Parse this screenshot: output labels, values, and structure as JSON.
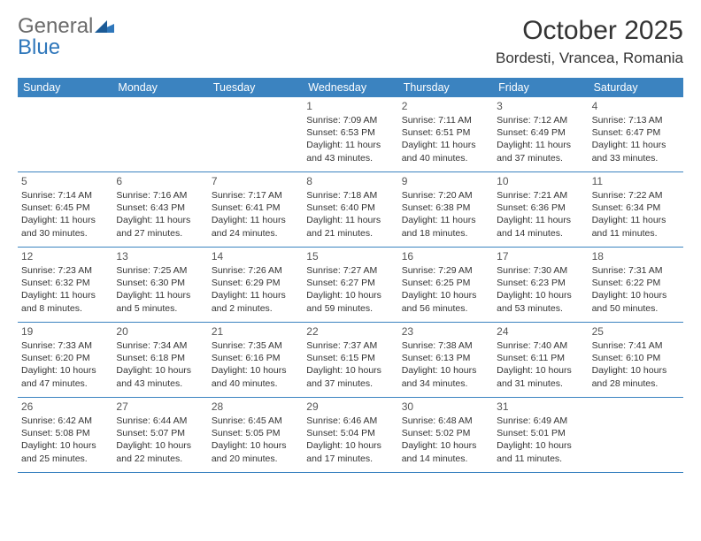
{
  "brand": {
    "part1": "General",
    "part2": "Blue"
  },
  "title": "October 2025",
  "location": "Bordesti, Vrancea, Romania",
  "colors": {
    "header_bar": "#3b83c0",
    "row_border": "#3b83c0",
    "brand_gray": "#6b6b6b",
    "brand_blue": "#2f77bb",
    "text": "#333333"
  },
  "day_names": [
    "Sunday",
    "Monday",
    "Tuesday",
    "Wednesday",
    "Thursday",
    "Friday",
    "Saturday"
  ],
  "weeks": [
    [
      {
        "n": "",
        "sr": "",
        "ss": "",
        "dl": ""
      },
      {
        "n": "",
        "sr": "",
        "ss": "",
        "dl": ""
      },
      {
        "n": "",
        "sr": "",
        "ss": "",
        "dl": ""
      },
      {
        "n": "1",
        "sr": "Sunrise: 7:09 AM",
        "ss": "Sunset: 6:53 PM",
        "dl": "Daylight: 11 hours and 43 minutes."
      },
      {
        "n": "2",
        "sr": "Sunrise: 7:11 AM",
        "ss": "Sunset: 6:51 PM",
        "dl": "Daylight: 11 hours and 40 minutes."
      },
      {
        "n": "3",
        "sr": "Sunrise: 7:12 AM",
        "ss": "Sunset: 6:49 PM",
        "dl": "Daylight: 11 hours and 37 minutes."
      },
      {
        "n": "4",
        "sr": "Sunrise: 7:13 AM",
        "ss": "Sunset: 6:47 PM",
        "dl": "Daylight: 11 hours and 33 minutes."
      }
    ],
    [
      {
        "n": "5",
        "sr": "Sunrise: 7:14 AM",
        "ss": "Sunset: 6:45 PM",
        "dl": "Daylight: 11 hours and 30 minutes."
      },
      {
        "n": "6",
        "sr": "Sunrise: 7:16 AM",
        "ss": "Sunset: 6:43 PM",
        "dl": "Daylight: 11 hours and 27 minutes."
      },
      {
        "n": "7",
        "sr": "Sunrise: 7:17 AM",
        "ss": "Sunset: 6:41 PM",
        "dl": "Daylight: 11 hours and 24 minutes."
      },
      {
        "n": "8",
        "sr": "Sunrise: 7:18 AM",
        "ss": "Sunset: 6:40 PM",
        "dl": "Daylight: 11 hours and 21 minutes."
      },
      {
        "n": "9",
        "sr": "Sunrise: 7:20 AM",
        "ss": "Sunset: 6:38 PM",
        "dl": "Daylight: 11 hours and 18 minutes."
      },
      {
        "n": "10",
        "sr": "Sunrise: 7:21 AM",
        "ss": "Sunset: 6:36 PM",
        "dl": "Daylight: 11 hours and 14 minutes."
      },
      {
        "n": "11",
        "sr": "Sunrise: 7:22 AM",
        "ss": "Sunset: 6:34 PM",
        "dl": "Daylight: 11 hours and 11 minutes."
      }
    ],
    [
      {
        "n": "12",
        "sr": "Sunrise: 7:23 AM",
        "ss": "Sunset: 6:32 PM",
        "dl": "Daylight: 11 hours and 8 minutes."
      },
      {
        "n": "13",
        "sr": "Sunrise: 7:25 AM",
        "ss": "Sunset: 6:30 PM",
        "dl": "Daylight: 11 hours and 5 minutes."
      },
      {
        "n": "14",
        "sr": "Sunrise: 7:26 AM",
        "ss": "Sunset: 6:29 PM",
        "dl": "Daylight: 11 hours and 2 minutes."
      },
      {
        "n": "15",
        "sr": "Sunrise: 7:27 AM",
        "ss": "Sunset: 6:27 PM",
        "dl": "Daylight: 10 hours and 59 minutes."
      },
      {
        "n": "16",
        "sr": "Sunrise: 7:29 AM",
        "ss": "Sunset: 6:25 PM",
        "dl": "Daylight: 10 hours and 56 minutes."
      },
      {
        "n": "17",
        "sr": "Sunrise: 7:30 AM",
        "ss": "Sunset: 6:23 PM",
        "dl": "Daylight: 10 hours and 53 minutes."
      },
      {
        "n": "18",
        "sr": "Sunrise: 7:31 AM",
        "ss": "Sunset: 6:22 PM",
        "dl": "Daylight: 10 hours and 50 minutes."
      }
    ],
    [
      {
        "n": "19",
        "sr": "Sunrise: 7:33 AM",
        "ss": "Sunset: 6:20 PM",
        "dl": "Daylight: 10 hours and 47 minutes."
      },
      {
        "n": "20",
        "sr": "Sunrise: 7:34 AM",
        "ss": "Sunset: 6:18 PM",
        "dl": "Daylight: 10 hours and 43 minutes."
      },
      {
        "n": "21",
        "sr": "Sunrise: 7:35 AM",
        "ss": "Sunset: 6:16 PM",
        "dl": "Daylight: 10 hours and 40 minutes."
      },
      {
        "n": "22",
        "sr": "Sunrise: 7:37 AM",
        "ss": "Sunset: 6:15 PM",
        "dl": "Daylight: 10 hours and 37 minutes."
      },
      {
        "n": "23",
        "sr": "Sunrise: 7:38 AM",
        "ss": "Sunset: 6:13 PM",
        "dl": "Daylight: 10 hours and 34 minutes."
      },
      {
        "n": "24",
        "sr": "Sunrise: 7:40 AM",
        "ss": "Sunset: 6:11 PM",
        "dl": "Daylight: 10 hours and 31 minutes."
      },
      {
        "n": "25",
        "sr": "Sunrise: 7:41 AM",
        "ss": "Sunset: 6:10 PM",
        "dl": "Daylight: 10 hours and 28 minutes."
      }
    ],
    [
      {
        "n": "26",
        "sr": "Sunrise: 6:42 AM",
        "ss": "Sunset: 5:08 PM",
        "dl": "Daylight: 10 hours and 25 minutes."
      },
      {
        "n": "27",
        "sr": "Sunrise: 6:44 AM",
        "ss": "Sunset: 5:07 PM",
        "dl": "Daylight: 10 hours and 22 minutes."
      },
      {
        "n": "28",
        "sr": "Sunrise: 6:45 AM",
        "ss": "Sunset: 5:05 PM",
        "dl": "Daylight: 10 hours and 20 minutes."
      },
      {
        "n": "29",
        "sr": "Sunrise: 6:46 AM",
        "ss": "Sunset: 5:04 PM",
        "dl": "Daylight: 10 hours and 17 minutes."
      },
      {
        "n": "30",
        "sr": "Sunrise: 6:48 AM",
        "ss": "Sunset: 5:02 PM",
        "dl": "Daylight: 10 hours and 14 minutes."
      },
      {
        "n": "31",
        "sr": "Sunrise: 6:49 AM",
        "ss": "Sunset: 5:01 PM",
        "dl": "Daylight: 10 hours and 11 minutes."
      },
      {
        "n": "",
        "sr": "",
        "ss": "",
        "dl": ""
      }
    ]
  ]
}
